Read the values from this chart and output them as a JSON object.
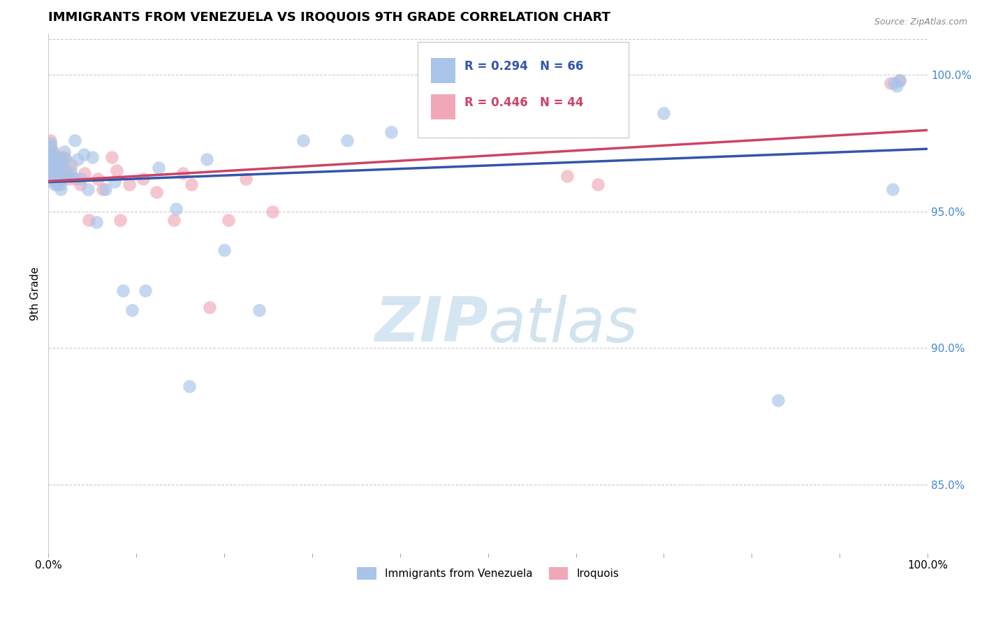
{
  "title": "IMMIGRANTS FROM VENEZUELA VS IROQUOIS 9TH GRADE CORRELATION CHART",
  "source": "Source: ZipAtlas.com",
  "ylabel": "9th Grade",
  "legend_label1": "Immigrants from Venezuela",
  "legend_label2": "Iroquois",
  "r1": 0.294,
  "n1": 66,
  "r2": 0.446,
  "n2": 44,
  "color1": "#A8C4E8",
  "color2": "#F0A8B8",
  "trendline1_color": "#3355AA",
  "trendline2_color": "#CC4466",
  "watermark_zip": "ZIP",
  "watermark_atlas": "atlas",
  "y_tick_labels": [
    "85.0%",
    "90.0%",
    "95.0%",
    "100.0%"
  ],
  "y_tick_values": [
    0.85,
    0.9,
    0.95,
    1.0
  ],
  "x_min": 0.0,
  "x_max": 1.0,
  "y_min": 0.825,
  "y_max": 1.015,
  "blue_x": [
    0.001,
    0.002,
    0.002,
    0.003,
    0.003,
    0.004,
    0.004,
    0.004,
    0.005,
    0.005,
    0.005,
    0.006,
    0.006,
    0.006,
    0.007,
    0.007,
    0.007,
    0.008,
    0.008,
    0.009,
    0.009,
    0.01,
    0.01,
    0.011,
    0.012,
    0.013,
    0.014,
    0.015,
    0.016,
    0.017,
    0.018,
    0.02,
    0.022,
    0.025,
    0.027,
    0.03,
    0.033,
    0.036,
    0.04,
    0.045,
    0.05,
    0.055,
    0.065,
    0.075,
    0.085,
    0.095,
    0.11,
    0.125,
    0.145,
    0.16,
    0.18,
    0.2,
    0.24,
    0.29,
    0.34,
    0.39,
    0.44,
    0.49,
    0.55,
    0.62,
    0.7,
    0.83,
    0.96,
    0.962,
    0.965,
    0.968
  ],
  "blue_y": [
    0.966,
    0.972,
    0.975,
    0.97,
    0.974,
    0.972,
    0.968,
    0.963,
    0.97,
    0.966,
    0.963,
    0.97,
    0.966,
    0.961,
    0.969,
    0.965,
    0.96,
    0.967,
    0.962,
    0.966,
    0.961,
    0.966,
    0.96,
    0.963,
    0.966,
    0.96,
    0.958,
    0.967,
    0.969,
    0.963,
    0.972,
    0.969,
    0.963,
    0.965,
    0.963,
    0.976,
    0.969,
    0.962,
    0.971,
    0.958,
    0.97,
    0.946,
    0.958,
    0.961,
    0.921,
    0.914,
    0.921,
    0.966,
    0.951,
    0.886,
    0.969,
    0.936,
    0.914,
    0.976,
    0.976,
    0.979,
    0.981,
    0.983,
    0.986,
    0.983,
    0.986,
    0.881,
    0.958,
    0.997,
    0.996,
    0.998
  ],
  "pink_x": [
    0.001,
    0.002,
    0.003,
    0.004,
    0.005,
    0.005,
    0.006,
    0.006,
    0.007,
    0.007,
    0.008,
    0.009,
    0.01,
    0.011,
    0.012,
    0.014,
    0.016,
    0.018,
    0.02,
    0.023,
    0.026,
    0.03,
    0.036,
    0.041,
    0.046,
    0.056,
    0.062,
    0.072,
    0.078,
    0.082,
    0.092,
    0.108,
    0.123,
    0.143,
    0.153,
    0.163,
    0.183,
    0.205,
    0.225,
    0.255,
    0.59,
    0.625,
    0.958,
    0.968
  ],
  "pink_y": [
    0.97,
    0.976,
    0.971,
    0.967,
    0.972,
    0.966,
    0.97,
    0.964,
    0.97,
    0.963,
    0.967,
    0.968,
    0.964,
    0.962,
    0.967,
    0.97,
    0.962,
    0.97,
    0.965,
    0.962,
    0.967,
    0.962,
    0.96,
    0.964,
    0.947,
    0.962,
    0.958,
    0.97,
    0.965,
    0.947,
    0.96,
    0.962,
    0.957,
    0.947,
    0.964,
    0.96,
    0.915,
    0.947,
    0.962,
    0.95,
    0.963,
    0.96,
    0.997,
    0.998
  ],
  "grid_color": "#CCCCCC",
  "right_axis_color": "#4488CC",
  "title_fontsize": 13,
  "source_fontsize": 9,
  "axis_fontsize": 11,
  "legend_fontsize": 12
}
